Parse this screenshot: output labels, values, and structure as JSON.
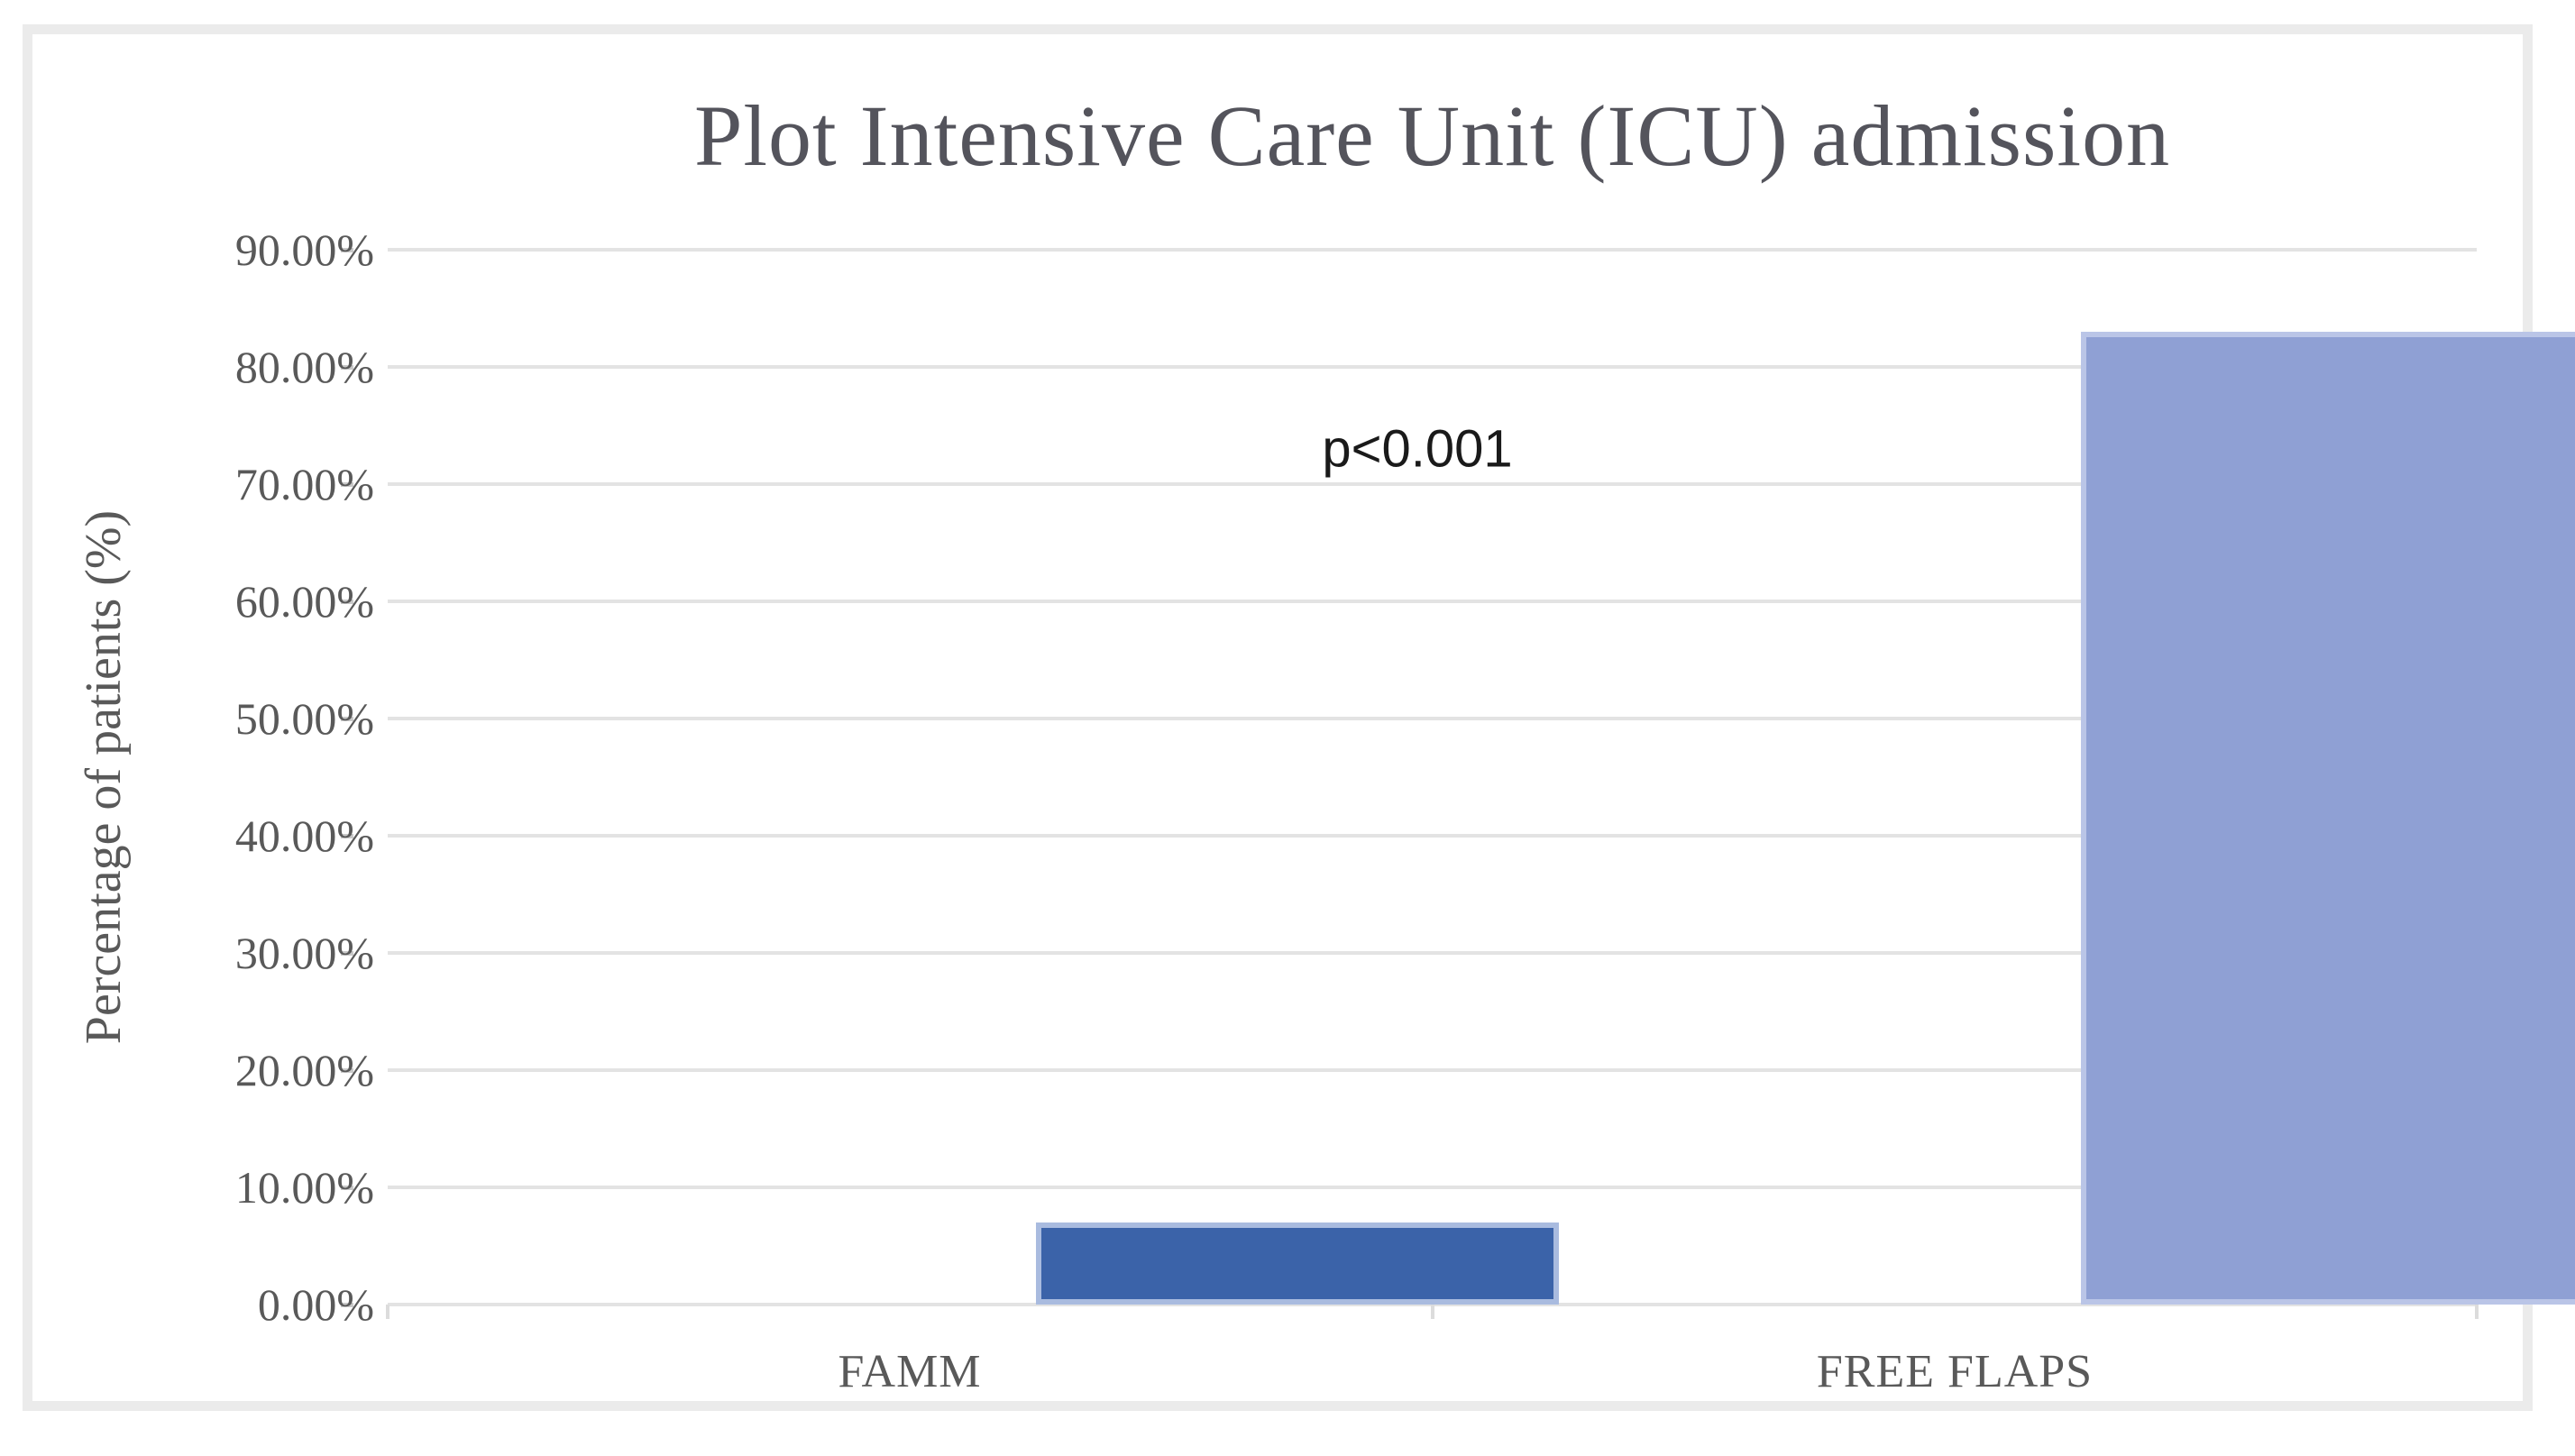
{
  "chart_data": {
    "type": "bar",
    "title": "Plot Intensive Care Unit (ICU) admission",
    "categories": [
      "FAMM",
      "FREE FLAPS"
    ],
    "values": [
      7,
      83
    ],
    "xlabel": "",
    "ylabel": "Percentage of patients (%)",
    "ylim": [
      0,
      90
    ],
    "ytick_step": 10,
    "ytick_labels": [
      "0.00%",
      "10.00%",
      "20.00%",
      "30.00%",
      "40.00%",
      "50.00%",
      "60.00%",
      "70.00%",
      "80.00%",
      "90.00%"
    ],
    "grid": true,
    "legend_position": "none",
    "annotation": {
      "text": "p<0.001",
      "x_frac": 0.493,
      "y_value": 73
    },
    "colors": {
      "bar_fills": [
        "#3b63a9",
        "#8fa0d4"
      ],
      "bar_borders": [
        "#a9bbdf",
        "#bac5e7"
      ],
      "gridline": "#e3e3e3",
      "axis_text": "#595959",
      "title_text": "#54545c",
      "annotation_text": "#1a1a1a",
      "frame_border": "#ebebeb"
    }
  }
}
